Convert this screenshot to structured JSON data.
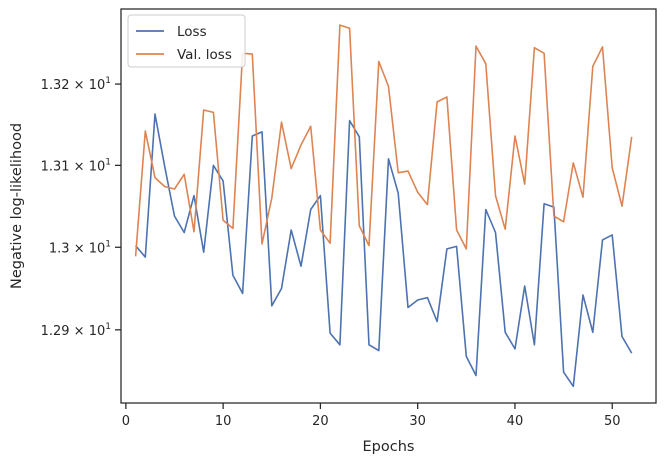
{
  "chart_data": {
    "type": "line",
    "xlabel": "Epochs",
    "ylabel": "Negative log-likelihood",
    "y_scale": "log",
    "xlim": [
      -0.5,
      54.5
    ],
    "ylim": [
      12.812,
      13.293
    ],
    "x_ticks": [
      0,
      10,
      20,
      30,
      40,
      50
    ],
    "x_tick_labels": [
      "0",
      "10",
      "20",
      "30",
      "40",
      "50"
    ],
    "y_ticks": [
      12.9,
      13.0,
      13.1,
      13.2
    ],
    "y_tick_labels": [
      {
        "mantissa": "1.29",
        "times": "×",
        "base": "10",
        "exp": "1"
      },
      {
        "mantissa": "1.3",
        "times": "×",
        "base": "10",
        "exp": "1"
      },
      {
        "mantissa": "1.31",
        "times": "×",
        "base": "10",
        "exp": "1"
      },
      {
        "mantissa": "1.32",
        "times": "×",
        "base": "10",
        "exp": "1"
      }
    ],
    "grid": false,
    "legend_position": "top-left",
    "x": [
      1,
      2,
      3,
      4,
      5,
      6,
      7,
      8,
      9,
      10,
      11,
      12,
      13,
      14,
      15,
      16,
      17,
      18,
      19,
      20,
      21,
      22,
      23,
      24,
      25,
      26,
      27,
      28,
      29,
      30,
      31,
      32,
      33,
      34,
      35,
      36,
      37,
      38,
      39,
      40,
      41,
      42,
      43,
      44,
      45,
      46,
      47,
      48,
      49,
      50,
      51,
      52
    ],
    "series": [
      {
        "name": "Loss",
        "color": "#4c72b0",
        "values": [
          13.002,
          12.988,
          13.163,
          13.098,
          13.038,
          13.018,
          13.063,
          12.994,
          13.1,
          13.081,
          12.966,
          12.944,
          13.136,
          13.141,
          12.929,
          12.95,
          13.021,
          12.977,
          13.046,
          13.063,
          12.896,
          12.882,
          13.155,
          13.135,
          12.882,
          12.875,
          13.108,
          13.066,
          12.927,
          12.936,
          12.939,
          12.91,
          12.998,
          13.001,
          12.868,
          12.845,
          13.046,
          13.018,
          12.897,
          12.877,
          12.953,
          12.882,
          13.053,
          13.049,
          12.849,
          12.832,
          12.942,
          12.897,
          13.009,
          13.015,
          12.892,
          12.872
        ]
      },
      {
        "name": "Val. loss",
        "color": "#dd8452",
        "values": [
          12.989,
          13.142,
          13.085,
          13.074,
          13.071,
          13.089,
          13.019,
          13.168,
          13.165,
          13.033,
          13.023,
          13.238,
          13.237,
          13.004,
          13.06,
          13.153,
          13.096,
          13.125,
          13.148,
          13.021,
          13.005,
          13.273,
          13.269,
          13.026,
          13.002,
          13.228,
          13.197,
          13.091,
          13.093,
          13.067,
          13.052,
          13.178,
          13.184,
          13.021,
          12.998,
          13.247,
          13.225,
          13.063,
          13.022,
          13.136,
          13.077,
          13.245,
          13.238,
          13.038,
          13.031,
          13.103,
          13.061,
          13.222,
          13.246,
          13.097,
          13.05,
          13.135
        ]
      }
    ]
  }
}
